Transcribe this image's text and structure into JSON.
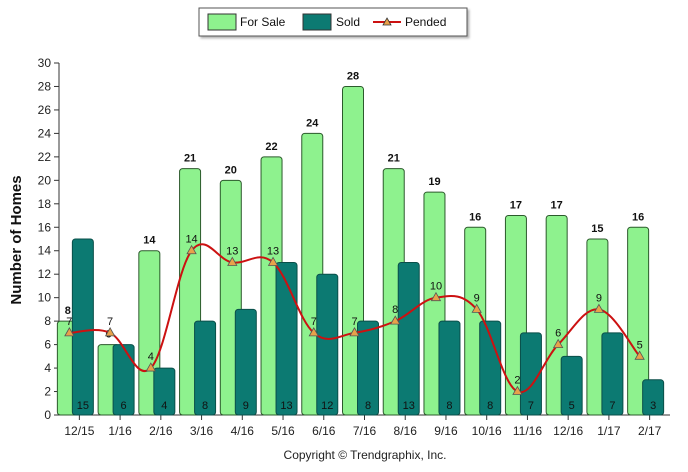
{
  "chart_data": {
    "type": "bar",
    "categories": [
      "12/15",
      "1/16",
      "2/16",
      "3/16",
      "4/16",
      "5/16",
      "6/16",
      "7/16",
      "8/16",
      "9/16",
      "10/16",
      "11/16",
      "12/16",
      "1/17",
      "2/17"
    ],
    "series": [
      {
        "name": "For Sale",
        "type": "bar",
        "color": "#8ef28e",
        "values": [
          8,
          6,
          14,
          21,
          20,
          22,
          24,
          28,
          21,
          19,
          16,
          17,
          17,
          15,
          16
        ]
      },
      {
        "name": "Sold",
        "type": "bar",
        "color": "#0c7a72",
        "values": [
          15,
          6,
          4,
          8,
          9,
          13,
          12,
          8,
          13,
          8,
          8,
          7,
          5,
          7,
          3
        ]
      },
      {
        "name": "Pended",
        "type": "line",
        "color": "#cc1111",
        "marker_color": "#e8a24a",
        "values": [
          7,
          7,
          4,
          14,
          13,
          13,
          7,
          7,
          8,
          10,
          9,
          2,
          6,
          9,
          5
        ]
      }
    ],
    "ylabel": "Number of Homes",
    "ylim": [
      0,
      30
    ],
    "yticks": [
      0,
      2,
      4,
      6,
      8,
      10,
      12,
      14,
      16,
      18,
      20,
      22,
      24,
      26,
      28,
      30
    ],
    "legend_position": "top-center",
    "grid": false
  },
  "footer": {
    "copyright": "Copyright © Trendgraphix, Inc."
  }
}
